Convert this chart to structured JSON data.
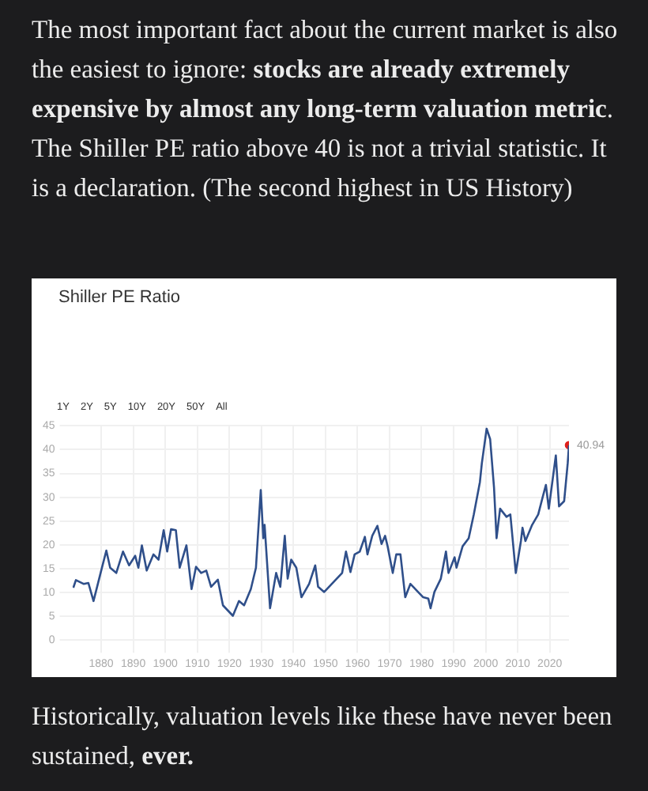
{
  "chart_data": {
    "type": "line",
    "title": "Shiller PE Ratio",
    "annotations": [
      "The most important fact about the current market is also the easiest to ignore: ",
      "stocks are already extremely expensive by almost any long-term valuation metric",
      ". The Shiller PE ratio above 40 is not a trivial statistic. It is a declaration. (The second highest in US History)",
      "1Y",
      "2Y",
      "5Y",
      "10Y",
      "20Y",
      "50Y",
      "All",
      "Historically, valuation levels like these have never been sustained, ",
      "ever.",
      {
        "text": "40.94",
        "x": 2026,
        "y": 40.94
      }
    ],
    "xlim": [
      1871,
      2026
    ],
    "xticks": [
      1880,
      1890,
      1900,
      1910,
      1920,
      1930,
      1940,
      1950,
      1960,
      1970,
      1980,
      1990,
      2000,
      2010,
      2020
    ],
    "ylim": [
      0,
      45
    ],
    "yticks": [
      0,
      5,
      10,
      15,
      20,
      25,
      30,
      35,
      40,
      45
    ],
    "grid": true,
    "legend": false,
    "marker": "none",
    "line_style": "solid",
    "series": [
      {
        "color": "#2f4f8a",
        "x": [
          1871.3,
          1872.1,
          1874.5,
          1876,
          1877.6,
          1880,
          1881.6,
          1882.8,
          1884.7,
          1886.8,
          1888.7,
          1890.6,
          1891.6,
          1892.7,
          1894.2,
          1896.3,
          1897.9,
          1899.5,
          1900.6,
          1901.8,
          1903.3,
          1904.5,
          1906.6,
          1908.2,
          1909.6,
          1911.2,
          1912.8,
          1914.3,
          1916.4,
          1918,
          1921.1,
          1923,
          1924.6,
          1926.7,
          1928.3,
          1929.8,
          1930.6,
          1931,
          1932.7,
          1934.6,
          1935.9,
          1937.3,
          1938.2,
          1939.3,
          1940.9,
          1942.5,
          1944.9,
          1946.8,
          1947.7,
          1949.6,
          1952.8,
          1955.2,
          1956.4,
          1957.8,
          1959.1,
          1960.7,
          1962.3,
          1963.1,
          1964.6,
          1966.2,
          1967.5,
          1968.6,
          1969.4,
          1971,
          1972.1,
          1973.4,
          1974.9,
          1976.5,
          1978.9,
          1980.5,
          1982.1,
          1982.8,
          1984,
          1986,
          1987.6,
          1988.4,
          1990.3,
          1990.9,
          1992.8,
          1994.7,
          1996.3,
          1998.2,
          1998.8,
          2000.3,
          2001.4,
          2002.6,
          2003.4,
          2004.5,
          2006.5,
          2007.7,
          2009.4,
          2011,
          2011.5,
          2012.4,
          2014.5,
          2016.4,
          2017.7,
          2018.8,
          2019.7,
          2021.9,
          2022.9,
          2024.5,
          2025.6,
          2026
        ],
        "values": [
          11.0,
          12.6,
          11.8,
          12.0,
          8.2,
          14.6,
          18.8,
          15.2,
          14.1,
          18.6,
          15.7,
          17.7,
          15.2,
          19.9,
          14.6,
          18.0,
          16.9,
          23.1,
          18.6,
          23.3,
          23.1,
          15.2,
          19.9,
          10.7,
          15.4,
          14.1,
          14.6,
          11.2,
          12.7,
          7.3,
          5.1,
          8.2,
          7.3,
          10.7,
          15.2,
          31.5,
          21.4,
          24.2,
          6.7,
          14.1,
          11.2,
          21.9,
          12.9,
          16.9,
          15.2,
          9.0,
          11.8,
          15.7,
          11.2,
          10.1,
          12.4,
          14.1,
          18.6,
          14.3,
          18.0,
          18.6,
          21.7,
          18.0,
          21.9,
          24.0,
          20.2,
          21.9,
          19.7,
          14.1,
          18.0,
          18.0,
          9.0,
          11.8,
          10.1,
          9.0,
          8.7,
          6.7,
          10.1,
          12.9,
          18.6,
          14.1,
          17.4,
          15.2,
          19.7,
          21.4,
          26.4,
          33.2,
          37.1,
          44.4,
          42.2,
          32.1,
          21.4,
          27.6,
          25.9,
          26.4,
          14.1,
          20.8,
          23.6,
          20.8,
          24.2,
          26.4,
          29.8,
          32.6,
          27.6,
          38.8,
          28.1,
          29.2,
          37.1,
          40.94
        ]
      },
      {
        "type": "scatter",
        "color": "#e0201b",
        "marker": "circle",
        "x": [
          2026
        ],
        "values": [
          40.94
        ]
      }
    ]
  }
}
